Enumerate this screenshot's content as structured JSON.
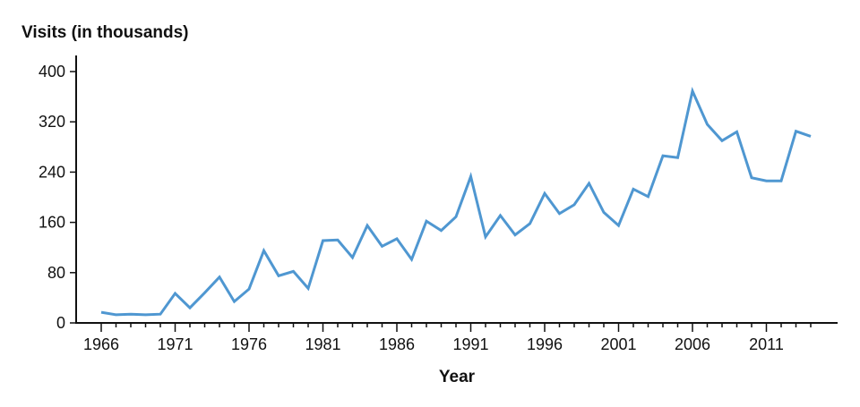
{
  "chart_data": {
    "type": "line",
    "title": "",
    "ylabel": "Visits (in thousands)",
    "xlabel": "Year",
    "ylim": [
      0,
      400
    ],
    "yticks": [
      0,
      80,
      160,
      240,
      320,
      400
    ],
    "xtick_labels": [
      "1966",
      "1971",
      "1976",
      "1981",
      "1986",
      "1991",
      "1996",
      "2001",
      "2006",
      "2011"
    ],
    "grid": false,
    "legend": null,
    "line_color": "#4f97d1",
    "x": [
      1966,
      1967,
      1968,
      1969,
      1970,
      1971,
      1972,
      1973,
      1974,
      1975,
      1976,
      1977,
      1978,
      1979,
      1980,
      1981,
      1982,
      1983,
      1984,
      1985,
      1986,
      1987,
      1988,
      1989,
      1990,
      1991,
      1992,
      1993,
      1994,
      1995,
      1996,
      1997,
      1998,
      1999,
      2000,
      2001,
      2002,
      2003,
      2004,
      2005,
      2006,
      2007,
      2008,
      2009,
      2010,
      2011,
      2012,
      2013,
      2014
    ],
    "series": [
      {
        "name": "Visits",
        "values": [
          17,
          13,
          14,
          13,
          14,
          47,
          24,
          48,
          73,
          34,
          54,
          115,
          75,
          82,
          55,
          131,
          132,
          104,
          155,
          122,
          134,
          101,
          162,
          147,
          169,
          233,
          137,
          171,
          140,
          158,
          206,
          174,
          188,
          222,
          176,
          155,
          213,
          201,
          266,
          263,
          369,
          316,
          290,
          304,
          231,
          226,
          226,
          305,
          297
        ]
      }
    ]
  }
}
